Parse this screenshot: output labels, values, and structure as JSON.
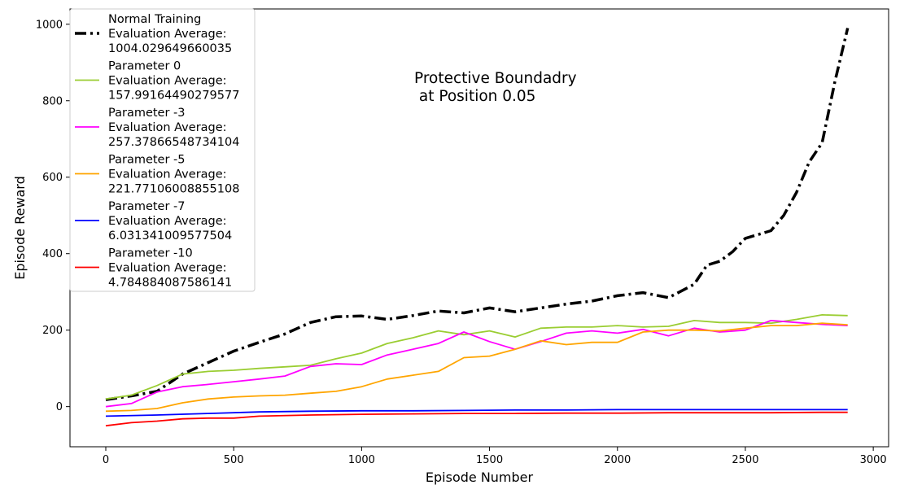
{
  "chart_data": {
    "type": "line",
    "title": "",
    "xlabel": "Episode Number",
    "ylabel": "Episode Reward",
    "xlim": [
      -140,
      3060
    ],
    "ylim": [
      -105,
      1040
    ],
    "xticks": [
      0,
      500,
      1000,
      1500,
      2000,
      2500,
      3000
    ],
    "yticks": [
      0,
      200,
      400,
      600,
      800,
      1000
    ],
    "grid": false,
    "legend_position": "top-left",
    "annotation": [
      "Protective Boundadry",
      " at Position 0.05"
    ],
    "series": [
      {
        "name": "Normal Training",
        "legend_lines": [
          "Normal Training",
          " Evaluation Average:",
          " 1004.029649660035"
        ],
        "color": "#000000",
        "style": "dashdot",
        "x": [
          0,
          100,
          200,
          300,
          400,
          500,
          600,
          700,
          800,
          900,
          1000,
          1100,
          1200,
          1300,
          1400,
          1500,
          1600,
          1700,
          1800,
          1900,
          2000,
          2100,
          2200,
          2300,
          2350,
          2400,
          2450,
          2500,
          2550,
          2600,
          2650,
          2700,
          2750,
          2800,
          2850,
          2900
        ],
        "y": [
          18,
          28,
          40,
          85,
          115,
          145,
          168,
          190,
          220,
          235,
          237,
          228,
          238,
          250,
          245,
          258,
          248,
          258,
          268,
          276,
          290,
          298,
          285,
          320,
          370,
          380,
          405,
          440,
          450,
          460,
          500,
          560,
          640,
          690,
          850,
          990
        ]
      },
      {
        "name": "Parameter 0",
        "legend_lines": [
          "Parameter 0",
          " Evaluation Average:",
          " 157.99164490279577"
        ],
        "color": "#9ACD32",
        "style": "solid",
        "x": [
          0,
          100,
          200,
          300,
          400,
          500,
          600,
          700,
          800,
          900,
          1000,
          1100,
          1200,
          1300,
          1400,
          1500,
          1600,
          1700,
          1800,
          1900,
          2000,
          2100,
          2200,
          2300,
          2400,
          2500,
          2600,
          2700,
          2800,
          2900
        ],
        "y": [
          20,
          30,
          55,
          85,
          92,
          95,
          100,
          104,
          108,
          125,
          140,
          165,
          180,
          198,
          188,
          198,
          182,
          205,
          208,
          208,
          212,
          208,
          210,
          225,
          220,
          220,
          218,
          228,
          240,
          238
        ]
      },
      {
        "name": "Parameter -3",
        "legend_lines": [
          "Parameter -3",
          " Evaluation Average:",
          " 257.37866548734104"
        ],
        "color": "#FF00FF",
        "style": "solid",
        "x": [
          0,
          100,
          200,
          300,
          400,
          500,
          600,
          700,
          800,
          900,
          1000,
          1100,
          1200,
          1300,
          1400,
          1500,
          1600,
          1700,
          1800,
          1900,
          2000,
          2100,
          2200,
          2300,
          2400,
          2500,
          2600,
          2700,
          2800,
          2900
        ],
        "y": [
          0,
          8,
          38,
          52,
          58,
          65,
          72,
          80,
          105,
          112,
          110,
          135,
          150,
          165,
          195,
          170,
          150,
          170,
          192,
          198,
          192,
          202,
          185,
          205,
          195,
          200,
          225,
          220,
          215,
          212
        ]
      },
      {
        "name": "Parameter -5",
        "legend_lines": [
          "Parameter -5",
          " Evaluation Average:",
          " 221.77106008855108"
        ],
        "color": "#FFA500",
        "style": "solid",
        "x": [
          0,
          100,
          200,
          300,
          400,
          500,
          600,
          700,
          800,
          900,
          1000,
          1100,
          1200,
          1300,
          1400,
          1500,
          1600,
          1700,
          1800,
          1900,
          2000,
          2100,
          2200,
          2300,
          2400,
          2500,
          2600,
          2700,
          2800,
          2900
        ],
        "y": [
          -12,
          -10,
          -5,
          10,
          20,
          25,
          28,
          30,
          35,
          40,
          52,
          72,
          82,
          92,
          128,
          132,
          150,
          172,
          162,
          168,
          168,
          195,
          200,
          200,
          198,
          205,
          212,
          212,
          218,
          214
        ]
      },
      {
        "name": "Parameter -7",
        "legend_lines": [
          "Parameter -7",
          " Evaluation Average:",
          " 6.031341009577504"
        ],
        "color": "#0000FF",
        "style": "solid",
        "x": [
          0,
          200,
          400,
          600,
          800,
          1000,
          1200,
          1400,
          1600,
          1800,
          2000,
          2200,
          2400,
          2600,
          2800,
          2900
        ],
        "y": [
          -25,
          -22,
          -18,
          -14,
          -12,
          -11,
          -11,
          -10,
          -9,
          -9,
          -8,
          -8,
          -8,
          -8,
          -8,
          -8
        ]
      },
      {
        "name": "Parameter -10",
        "legend_lines": [
          "Parameter -10",
          " Evaluation Average:",
          " 4.784884087586141"
        ],
        "color": "#FF0000",
        "style": "solid",
        "x": [
          0,
          100,
          200,
          300,
          400,
          500,
          600,
          800,
          1000,
          1200,
          1400,
          1600,
          1800,
          2000,
          2200,
          2400,
          2600,
          2800,
          2900
        ],
        "y": [
          -50,
          -42,
          -38,
          -32,
          -30,
          -30,
          -25,
          -22,
          -20,
          -19,
          -18,
          -18,
          -17,
          -17,
          -16,
          -16,
          -16,
          -15,
          -15
        ]
      }
    ]
  }
}
